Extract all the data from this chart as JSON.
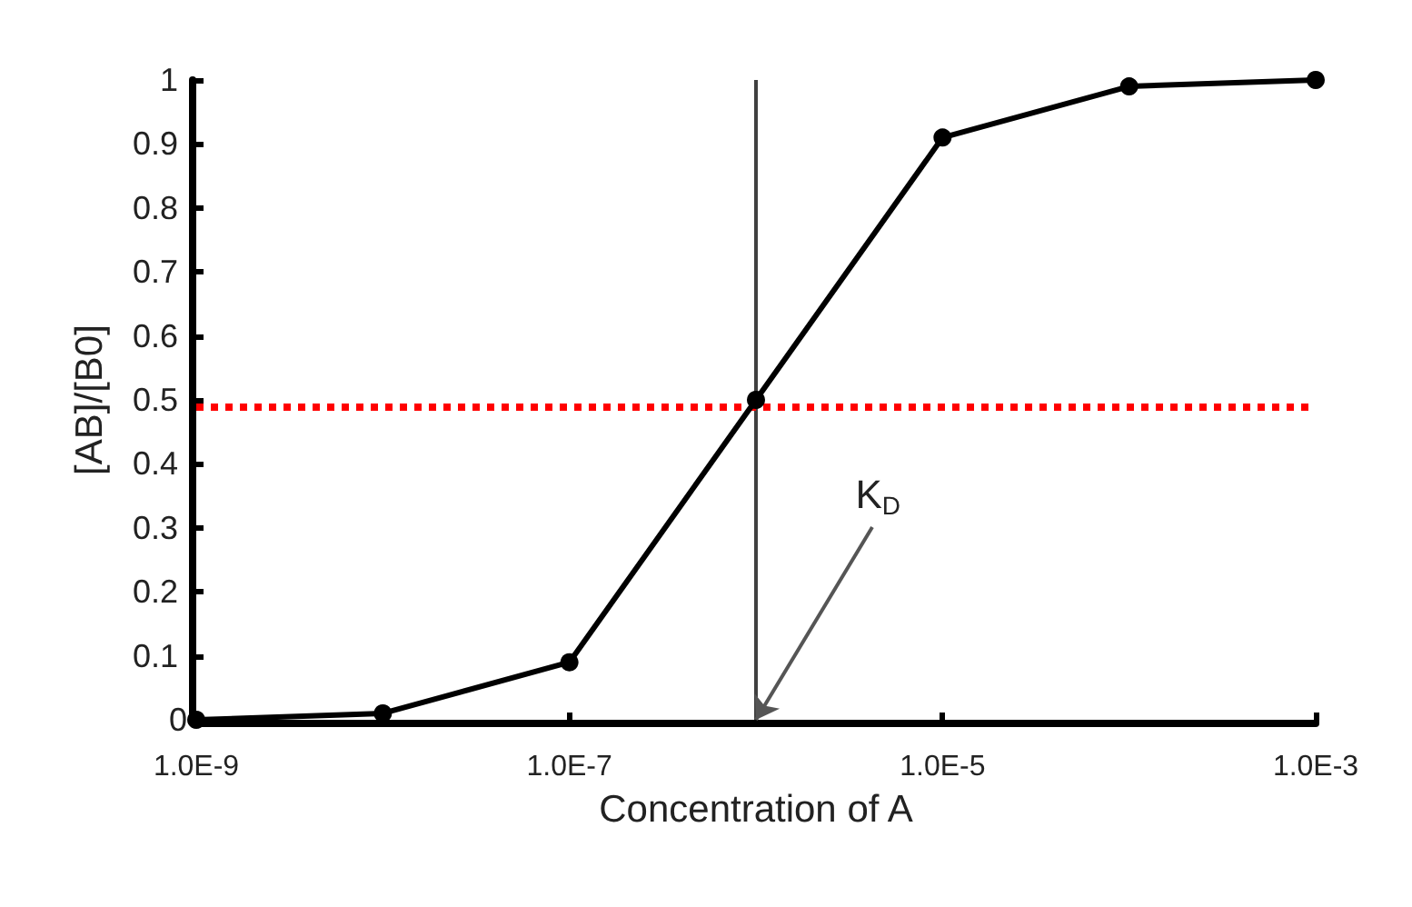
{
  "chart_data": {
    "type": "line",
    "xlabel": "Concentration of A",
    "ylabel": "[AB]/[B0]",
    "x": [
      1e-09,
      1e-08,
      1e-07,
      1e-06,
      1e-05,
      0.0001,
      0.001
    ],
    "series": [
      {
        "color": "#000000",
        "values": [
          0,
          0.01,
          0.09,
          0.5,
          0.91,
          0.99,
          1
        ]
      }
    ],
    "log": "x",
    "xlim": [
      1e-09,
      0.001
    ],
    "xticks": [
      {
        "value": 1e-09,
        "label": "1.0E-9"
      },
      {
        "value": 1e-07,
        "label": "1.0E-7"
      },
      {
        "value": 1e-05,
        "label": "1.0E-5"
      },
      {
        "value": 0.001,
        "label": "1.0E-3"
      }
    ],
    "ylim": [
      0,
      1
    ],
    "yticks": [
      0,
      0.1,
      0.2,
      0.3,
      0.4,
      0.5,
      0.6,
      0.7,
      0.8,
      0.9,
      1
    ],
    "ref_lines": [
      {
        "axis": "x",
        "value": 1e-06,
        "color": "#404040",
        "line_style": "solid"
      },
      {
        "axis": "y",
        "value": 0.49,
        "color": "#ff0000",
        "line_style": "dotted"
      }
    ],
    "annotations": [
      {
        "text": "K$_{D}$",
        "x": 1e-06,
        "y": 0
      }
    ],
    "marker": "circle",
    "line_style": "solid",
    "grid": false
  }
}
